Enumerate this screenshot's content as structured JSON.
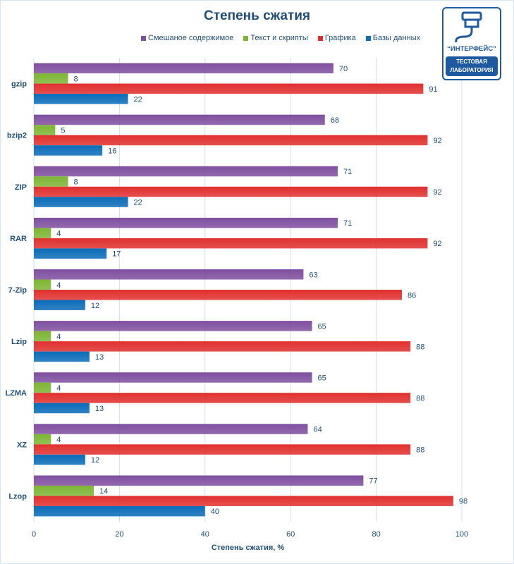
{
  "chart_data": {
    "type": "bar",
    "orientation": "horizontal",
    "title": "Степень сжатия",
    "xlabel": "Степень сжатия, %",
    "ylabel": "",
    "xlim": [
      0,
      100
    ],
    "xticks": [
      0,
      20,
      40,
      60,
      80,
      100
    ],
    "grid": true,
    "legend_position": "top",
    "categories": [
      "gzip",
      "bzip2",
      "ZIP",
      "RAR",
      "7-Zip",
      "Lzip",
      "LZMA",
      "XZ",
      "Lzop"
    ],
    "series": [
      {
        "name": "Смешаное содержимое",
        "color": "#7f4f9f",
        "values": [
          70,
          68,
          71,
          71,
          63,
          65,
          65,
          64,
          77
        ]
      },
      {
        "name": "Текст и скрипты",
        "color": "#7db534",
        "values": [
          8,
          5,
          8,
          4,
          4,
          4,
          4,
          4,
          14
        ]
      },
      {
        "name": "Графика",
        "color": "#e0302f",
        "values": [
          91,
          92,
          92,
          92,
          86,
          88,
          88,
          88,
          98
        ]
      },
      {
        "name": "Базы данных",
        "color": "#0b6cb8",
        "values": [
          22,
          16,
          22,
          17,
          12,
          13,
          13,
          12,
          40
        ]
      }
    ]
  },
  "logo": {
    "brand": "“ИНТЕРФЕЙС”",
    "line1": "ТЕСТОВАЯ",
    "line2": "ЛАБОРАТОРИЯ"
  }
}
